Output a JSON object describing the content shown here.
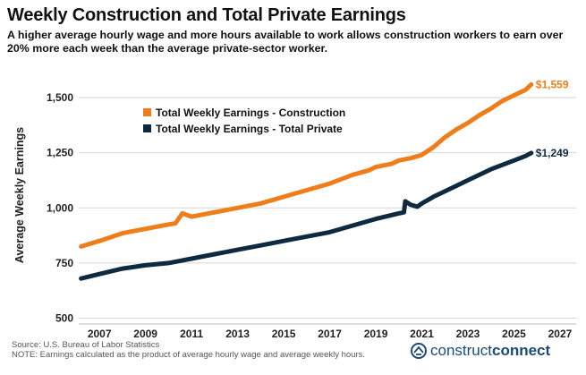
{
  "title": "Weekly Construction and Total Private Earnings",
  "subtitle": "A higher average hourly wage and more hours available to work allows construction workers to earn over 20% more each week than the average private-sector worker.",
  "source": "Source: U.S. Bureau of Labor Statistics",
  "note": "NOTE: Earnings calculated as the product of average hourly wage and average weekly hours.",
  "brand": {
    "part1": "construct",
    "part2": "connect",
    "icon": "construct-connect-logo-icon"
  },
  "colors": {
    "construction": "#EE7D1A",
    "private": "#0E2A40",
    "grid": "#D6D6D6"
  },
  "chart_data": {
    "type": "line",
    "title": "Weekly Construction and Total Private Earnings",
    "xlabel": "",
    "ylabel": "Average Weekly Earnings",
    "xlim": [
      2006.1,
      2027.7
    ],
    "ylim": [
      490,
      1650
    ],
    "x_ticks": [
      "2007",
      "2009",
      "2011",
      "2013",
      "2015",
      "2017",
      "2019",
      "2021",
      "2023",
      "2025",
      "2027"
    ],
    "y_ticks": [
      "500",
      "750",
      "1,000",
      "1,250",
      "1,500"
    ],
    "grid": "horizontal",
    "legend_position": "upper-left",
    "series": [
      {
        "name": "Total Weekly Earnings - Construction",
        "end_label": "$1,559",
        "x": [
          2006.2,
          2007.0,
          2008.0,
          2009.0,
          2010.0,
          2010.3,
          2010.6,
          2011.0,
          2012.0,
          2013.0,
          2014.0,
          2015.0,
          2016.0,
          2017.0,
          2018.0,
          2018.7,
          2019.0,
          2019.7,
          2020.0,
          2020.5,
          2021.0,
          2021.5,
          2022.0,
          2022.5,
          2023.0,
          2023.5,
          2024.0,
          2024.5,
          2025.0,
          2025.5,
          2025.75
        ],
        "values": [
          825,
          850,
          885,
          905,
          925,
          930,
          975,
          960,
          980,
          1000,
          1020,
          1050,
          1080,
          1110,
          1150,
          1170,
          1185,
          1200,
          1215,
          1225,
          1240,
          1275,
          1320,
          1355,
          1385,
          1420,
          1450,
          1485,
          1510,
          1535,
          1559
        ]
      },
      {
        "name": "Total Weekly Earnings - Total Private",
        "end_label": "$1,249",
        "x": [
          2006.2,
          2007.0,
          2008.0,
          2009.0,
          2010.0,
          2011.0,
          2012.0,
          2013.0,
          2014.0,
          2015.0,
          2016.0,
          2017.0,
          2018.0,
          2019.0,
          2020.0,
          2020.22,
          2020.28,
          2020.5,
          2020.8,
          2021.0,
          2021.5,
          2022.0,
          2022.5,
          2023.0,
          2023.5,
          2024.0,
          2024.5,
          2025.0,
          2025.5,
          2025.75
        ],
        "values": [
          680,
          700,
          725,
          740,
          750,
          770,
          790,
          810,
          830,
          850,
          870,
          890,
          920,
          950,
          975,
          980,
          1030,
          1015,
          1005,
          1020,
          1050,
          1075,
          1100,
          1125,
          1150,
          1175,
          1195,
          1215,
          1235,
          1249
        ]
      }
    ]
  }
}
